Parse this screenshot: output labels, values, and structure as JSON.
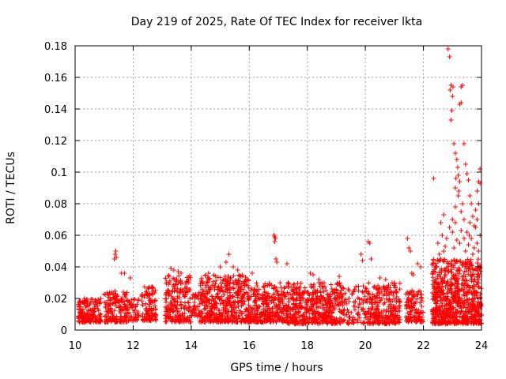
{
  "chart_data": {
    "type": "scatter",
    "title": "Day 219 of 2025, Rate Of TEC Index for receiver lkta",
    "xlabel": "GPS time / hours",
    "ylabel": "ROTI / TECUs",
    "xlim": [
      10,
      24
    ],
    "ylim": [
      0,
      0.18
    ],
    "xticks": [
      10,
      12,
      14,
      16,
      18,
      20,
      22,
      24
    ],
    "xtick_labels": [
      "10",
      "12",
      "14",
      "16",
      "18",
      "20",
      "22",
      "24"
    ],
    "yticks": [
      0,
      0.02,
      0.04,
      0.06,
      0.08,
      0.1,
      0.12,
      0.14,
      0.16,
      0.18
    ],
    "ytick_labels": [
      "0",
      "0.02",
      "0.04",
      "0.06",
      "0.08",
      "0.1",
      "0.12",
      "0.14",
      "0.16",
      "0.18"
    ],
    "grid": true,
    "marker": "+",
    "color": "#ff0000",
    "series": [
      {
        "name": "ROTI",
        "clusters": [
          {
            "x": [
              10.1,
              10.9
            ],
            "base": [
              0.005,
              0.02
            ],
            "n": 170
          },
          {
            "x": [
              11.0,
              11.8
            ],
            "base": [
              0.005,
              0.025
            ],
            "n": 160
          },
          {
            "x": [
              11.8,
              12.2
            ],
            "base": [
              0.006,
              0.02
            ],
            "n": 50
          },
          {
            "x": [
              12.3,
              12.8
            ],
            "base": [
              0.006,
              0.028
            ],
            "n": 110
          },
          {
            "x": [
              13.1,
              14.0
            ],
            "base": [
              0.005,
              0.035
            ],
            "n": 210
          },
          {
            "x": [
              14.0,
              14.3
            ],
            "base": [
              0.008,
              0.025
            ],
            "n": 40
          },
          {
            "x": [
              14.3,
              16.0
            ],
            "base": [
              0.005,
              0.035
            ],
            "n": 480
          },
          {
            "x": [
              16.0,
              17.3
            ],
            "base": [
              0.005,
              0.03
            ],
            "n": 320
          },
          {
            "x": [
              17.3,
              19.3
            ],
            "base": [
              0.004,
              0.03
            ],
            "n": 480
          },
          {
            "x": [
              19.3,
              20.0
            ],
            "base": [
              0.004,
              0.028
            ],
            "n": 70
          },
          {
            "x": [
              20.0,
              21.2
            ],
            "base": [
              0.004,
              0.03
            ],
            "n": 260
          },
          {
            "x": [
              21.4,
              22.0
            ],
            "base": [
              0.005,
              0.025
            ],
            "n": 120
          },
          {
            "x": [
              22.3,
              24.0
            ],
            "base": [
              0.004,
              0.045
            ],
            "n": 750
          }
        ],
        "outliers": [
          [
            11.35,
            0.045
          ],
          [
            11.38,
            0.048
          ],
          [
            11.4,
            0.05
          ],
          [
            11.42,
            0.046
          ],
          [
            11.6,
            0.036
          ],
          [
            11.7,
            0.036
          ],
          [
            11.9,
            0.033
          ],
          [
            13.3,
            0.039
          ],
          [
            13.4,
            0.038
          ],
          [
            13.55,
            0.037
          ],
          [
            13.65,
            0.036
          ],
          [
            14.6,
            0.036
          ],
          [
            15.0,
            0.04
          ],
          [
            15.2,
            0.043
          ],
          [
            15.3,
            0.048
          ],
          [
            15.45,
            0.04
          ],
          [
            15.6,
            0.038
          ],
          [
            16.1,
            0.036
          ],
          [
            16.85,
            0.06
          ],
          [
            16.88,
            0.059
          ],
          [
            16.9,
            0.058
          ],
          [
            16.88,
            0.056
          ],
          [
            16.92,
            0.045
          ],
          [
            16.95,
            0.043
          ],
          [
            17.3,
            0.042
          ],
          [
            18.1,
            0.036
          ],
          [
            18.2,
            0.035
          ],
          [
            18.4,
            0.032
          ],
          [
            19.1,
            0.034
          ],
          [
            19.85,
            0.048
          ],
          [
            19.9,
            0.044
          ],
          [
            20.1,
            0.056
          ],
          [
            20.15,
            0.055
          ],
          [
            20.2,
            0.045
          ],
          [
            20.5,
            0.033
          ],
          [
            20.7,
            0.032
          ],
          [
            21.0,
            0.03
          ],
          [
            21.45,
            0.058
          ],
          [
            21.5,
            0.052
          ],
          [
            21.55,
            0.05
          ],
          [
            21.6,
            0.036
          ],
          [
            21.65,
            0.035
          ],
          [
            21.8,
            0.042
          ],
          [
            21.9,
            0.04
          ],
          [
            22.35,
            0.096
          ],
          [
            22.6,
            0.068
          ],
          [
            22.7,
            0.073
          ],
          [
            22.65,
            0.06
          ],
          [
            22.85,
            0.178
          ],
          [
            22.9,
            0.173
          ],
          [
            22.95,
            0.155
          ],
          [
            22.92,
            0.152
          ],
          [
            23.0,
            0.148
          ],
          [
            23.02,
            0.154
          ],
          [
            22.98,
            0.139
          ],
          [
            22.95,
            0.133
          ],
          [
            23.05,
            0.118
          ],
          [
            23.1,
            0.112
          ],
          [
            23.15,
            0.108
          ],
          [
            23.2,
            0.098
          ],
          [
            23.25,
            0.094
          ],
          [
            23.1,
            0.09
          ],
          [
            23.3,
            0.154
          ],
          [
            23.35,
            0.155
          ],
          [
            23.25,
            0.143
          ],
          [
            23.3,
            0.144
          ],
          [
            23.4,
            0.118
          ],
          [
            23.45,
            0.105
          ],
          [
            23.5,
            0.099
          ],
          [
            23.55,
            0.095
          ],
          [
            23.6,
            0.085
          ],
          [
            23.65,
            0.08
          ],
          [
            23.2,
            0.085
          ],
          [
            23.3,
            0.075
          ],
          [
            23.4,
            0.07
          ],
          [
            23.1,
            0.078
          ],
          [
            23.0,
            0.07
          ],
          [
            22.9,
            0.065
          ],
          [
            23.7,
            0.072
          ],
          [
            23.75,
            0.066
          ],
          [
            23.8,
            0.076
          ],
          [
            23.85,
            0.088
          ],
          [
            23.9,
            0.094
          ],
          [
            23.95,
            0.102
          ],
          [
            23.95,
            0.093
          ],
          [
            23.9,
            0.08
          ],
          [
            23.85,
            0.07
          ],
          [
            23.8,
            0.065
          ],
          [
            23.6,
            0.068
          ],
          [
            23.5,
            0.062
          ],
          [
            23.4,
            0.058
          ],
          [
            23.3,
            0.063
          ],
          [
            22.8,
            0.058
          ],
          [
            22.75,
            0.053
          ],
          [
            22.7,
            0.05
          ],
          [
            23.05,
            0.052
          ],
          [
            23.15,
            0.057
          ],
          [
            23.25,
            0.055
          ],
          [
            23.45,
            0.05
          ],
          [
            23.55,
            0.054
          ],
          [
            23.65,
            0.058
          ],
          [
            23.75,
            0.052
          ],
          [
            23.85,
            0.055
          ],
          [
            23.95,
            0.06
          ],
          [
            23.0,
            0.062
          ],
          [
            23.12,
            0.096
          ],
          [
            23.18,
            0.103
          ],
          [
            23.22,
            0.088
          ],
          [
            23.58,
            0.06
          ],
          [
            23.7,
            0.048
          ],
          [
            23.9,
            0.05
          ],
          [
            22.5,
            0.055
          ],
          [
            22.55,
            0.048
          ],
          [
            22.6,
            0.045
          ],
          [
            23.1,
            0.068
          ],
          [
            23.35,
            0.08
          ]
        ]
      }
    ]
  }
}
